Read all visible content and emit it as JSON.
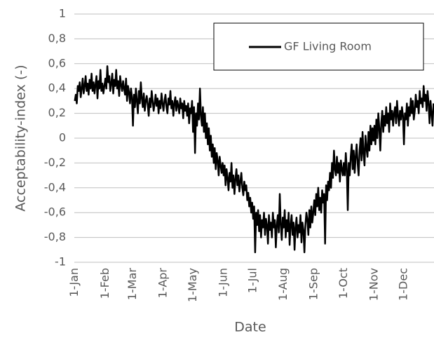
{
  "chart_data": {
    "type": "line",
    "xlabel": "Date",
    "ylabel": "Acceptability-index (-)",
    "ylim": [
      -1,
      1
    ],
    "yticks": [
      -1,
      {
        "value": -0.8,
        "label": "-0,8"
      },
      {
        "value": -0.6,
        "label": "-0,6"
      },
      {
        "value": -0.4,
        "label": "-0,4"
      },
      {
        "value": -0.2,
        "label": "-0,2"
      },
      0,
      {
        "value": 0.2,
        "label": "0,2"
      },
      {
        "value": 0.4,
        "label": "0,4"
      },
      {
        "value": 0.6,
        "label": "0,6"
      },
      {
        "value": 0.8,
        "label": "0,8"
      },
      1
    ],
    "grid": true,
    "legend": "top-right",
    "categories": [
      "1-Jan",
      null,
      null,
      null,
      null,
      null,
      null,
      null,
      null,
      null,
      null,
      null,
      null,
      null,
      null,
      null,
      null,
      null,
      null,
      null,
      null,
      null,
      null,
      null,
      null,
      null,
      null,
      null,
      null,
      null,
      null,
      "1-Feb",
      null,
      null,
      null,
      null,
      null,
      null,
      null,
      null,
      null,
      null,
      null,
      null,
      null,
      null,
      null,
      null,
      null,
      null,
      null,
      null,
      null,
      null,
      null,
      null,
      null,
      null,
      null,
      "1-Mar",
      null,
      null,
      null,
      null,
      null,
      null,
      null,
      null,
      null,
      null,
      null,
      null,
      null,
      null,
      null,
      null,
      null,
      null,
      null,
      null,
      null,
      null,
      null,
      null,
      null,
      null,
      null,
      null,
      null,
      null,
      "1-Apr",
      null,
      null,
      null,
      null,
      null,
      null,
      null,
      null,
      null,
      null,
      null,
      null,
      null,
      null,
      null,
      null,
      null,
      null,
      null,
      null,
      null,
      null,
      null,
      null,
      null,
      null,
      null,
      null,
      null,
      "1-May",
      null,
      null,
      null,
      null,
      null,
      null,
      null,
      null,
      null,
      null,
      null,
      null,
      null,
      null,
      null,
      null,
      null,
      null,
      null,
      null,
      null,
      null,
      null,
      null,
      null,
      null,
      null,
      null,
      null,
      null,
      "1-Jun",
      null,
      null,
      null,
      null,
      null,
      null,
      null,
      null,
      null,
      null,
      null,
      null,
      null,
      null,
      null,
      null,
      null,
      null,
      null,
      null,
      null,
      null,
      null,
      null,
      null,
      null,
      null,
      null,
      null,
      "1-Jul",
      null,
      null,
      null,
      null,
      null,
      null,
      null,
      null,
      null,
      null,
      null,
      null,
      null,
      null,
      null,
      null,
      null,
      null,
      null,
      null,
      null,
      null,
      null,
      null,
      null,
      null,
      null,
      null,
      null,
      null,
      "1-Aug",
      null,
      null,
      null,
      null,
      null,
      null,
      null,
      null,
      null,
      null,
      null,
      null,
      null,
      null,
      null,
      null,
      null,
      null,
      null,
      null,
      null,
      null,
      null,
      null,
      null,
      null,
      null,
      null,
      null,
      null,
      "1-Sep",
      null,
      null,
      null,
      null,
      null,
      null,
      null,
      null,
      null,
      null,
      null,
      null,
      null,
      null,
      null,
      null,
      null,
      null,
      null,
      null,
      null,
      null,
      null,
      null,
      null,
      null,
      null,
      null,
      null,
      "1-Oct",
      null,
      null,
      null,
      null,
      null,
      null,
      null,
      null,
      null,
      null,
      null,
      null,
      null,
      null,
      null,
      null,
      null,
      null,
      null,
      null,
      null,
      null,
      null,
      null,
      null,
      null,
      null,
      null,
      null,
      null,
      "1-Nov",
      null,
      null,
      null,
      null,
      null,
      null,
      null,
      null,
      null,
      null,
      null,
      null,
      null,
      null,
      null,
      null,
      null,
      null,
      null,
      null,
      null,
      null,
      null,
      null,
      null,
      null,
      null,
      null,
      null,
      "1-Dec",
      null,
      null,
      null,
      null,
      null,
      null,
      null,
      null,
      null,
      null,
      null,
      null,
      null,
      null,
      null,
      null,
      null,
      null,
      null,
      null,
      null,
      null,
      null,
      null,
      null,
      null,
      null,
      null,
      null,
      null
    ],
    "series": [
      {
        "name": "GF Living Room",
        "color": "#000000",
        "values": [
          0.3,
          0.35,
          0.28,
          0.42,
          0.38,
          0.45,
          0.33,
          0.4,
          0.48,
          0.36,
          0.42,
          0.5,
          0.38,
          0.44,
          0.35,
          0.47,
          0.4,
          0.52,
          0.38,
          0.45,
          0.36,
          0.43,
          0.5,
          0.32,
          0.46,
          0.4,
          0.55,
          0.38,
          0.44,
          0.36,
          0.42,
          0.48,
          0.4,
          0.58,
          0.45,
          0.5,
          0.38,
          0.44,
          0.52,
          0.36,
          0.47,
          0.42,
          0.55,
          0.4,
          0.46,
          0.34,
          0.5,
          0.43,
          0.38,
          0.46,
          0.4,
          0.35,
          0.48,
          0.3,
          0.42,
          0.37,
          0.28,
          0.4,
          0.33,
          0.1,
          0.35,
          0.25,
          0.4,
          0.3,
          0.2,
          0.38,
          0.28,
          0.45,
          0.32,
          0.25,
          0.36,
          0.22,
          0.3,
          0.34,
          0.27,
          0.18,
          0.32,
          0.25,
          0.38,
          0.3,
          0.22,
          0.28,
          0.35,
          0.26,
          0.32,
          0.2,
          0.3,
          0.24,
          0.36,
          0.28,
          0.22,
          0.3,
          0.35,
          0.25,
          0.2,
          0.32,
          0.27,
          0.38,
          0.24,
          0.3,
          0.18,
          0.28,
          0.33,
          0.22,
          0.3,
          0.26,
          0.2,
          0.32,
          0.24,
          0.28,
          0.16,
          0.3,
          0.22,
          0.26,
          0.18,
          0.28,
          0.12,
          0.24,
          0.2,
          0.3,
          0.05,
          0.25,
          -0.12,
          0.2,
          0.1,
          0.28,
          0.15,
          0.4,
          0.18,
          0.1,
          0.25,
          0.05,
          0.2,
          0,
          0.12,
          -0.05,
          0.08,
          -0.1,
          0.02,
          -0.15,
          -0.05,
          -0.2,
          -0.08,
          -0.25,
          -0.12,
          -0.18,
          -0.3,
          -0.15,
          -0.22,
          -0.28,
          -0.2,
          -0.3,
          -0.22,
          -0.38,
          -0.25,
          -0.32,
          -0.42,
          -0.28,
          -0.35,
          -0.2,
          -0.4,
          -0.3,
          -0.45,
          -0.33,
          -0.25,
          -0.38,
          -0.3,
          -0.43,
          -0.35,
          -0.28,
          -0.4,
          -0.46,
          -0.35,
          -0.42,
          -0.38,
          -0.5,
          -0.44,
          -0.55,
          -0.48,
          -0.6,
          -0.52,
          -0.65,
          -0.55,
          -0.92,
          -0.6,
          -0.7,
          -0.58,
          -0.75,
          -0.62,
          -0.8,
          -0.66,
          -0.72,
          -0.6,
          -0.78,
          -0.65,
          -0.7,
          -0.85,
          -0.62,
          -0.74,
          -0.68,
          -0.8,
          -0.6,
          -0.72,
          -0.66,
          -0.88,
          -0.7,
          -0.62,
          -0.76,
          -0.45,
          -0.7,
          -0.82,
          -0.64,
          -0.72,
          -0.58,
          -0.8,
          -0.66,
          -0.75,
          -0.6,
          -0.86,
          -0.7,
          -0.62,
          -0.78,
          -0.68,
          -0.9,
          -0.72,
          -0.64,
          -0.8,
          -0.7,
          -0.76,
          -0.62,
          -0.84,
          -0.68,
          -0.74,
          -0.92,
          -0.7,
          -0.6,
          -0.66,
          -0.78,
          -0.58,
          -0.72,
          -0.55,
          -0.68,
          -0.6,
          -0.5,
          -0.62,
          -0.45,
          -0.55,
          -0.4,
          -0.58,
          -0.48,
          -0.6,
          -0.42,
          -0.52,
          -0.45,
          -0.85,
          -0.38,
          -0.5,
          -0.35,
          -0.42,
          -0.28,
          -0.4,
          -0.2,
          -0.32,
          -0.1,
          -0.25,
          -0.3,
          -0.15,
          -0.28,
          -0.2,
          -0.35,
          -0.18,
          -0.25,
          -0.3,
          -0.2,
          -0.3,
          -0.12,
          -0.25,
          -0.58,
          -0.2,
          -0.3,
          -0.15,
          -0.05,
          -0.25,
          -0.1,
          -0.28,
          -0.15,
          -0.05,
          -0.2,
          -0.3,
          -0.1,
          0,
          -0.18,
          0.05,
          -0.12,
          -0.22,
          0.02,
          -0.08,
          -0.15,
          0.05,
          -0.1,
          0.1,
          -0.05,
          0.08,
          -0.02,
          0.1,
          -0.05,
          0.15,
          0,
          0.2,
          0.08,
          -0.1,
          0.12,
          0.22,
          0.05,
          0.18,
          0.1,
          0.25,
          0.12,
          0.2,
          0.05,
          0.28,
          0.15,
          0.22,
          0.1,
          0.2,
          0.25,
          0.12,
          0.3,
          0.18,
          0.1,
          0.22,
          0.15,
          0.25,
          0.18,
          -0.05,
          0.2,
          0.15,
          0.28,
          0.1,
          0.25,
          0.18,
          0.32,
          0.2,
          0.3,
          0.15,
          0.22,
          0.35,
          0.25,
          0.3,
          0.2,
          0.38,
          0.28,
          0.32,
          0.25,
          0.42,
          0.3,
          0.35,
          0.22,
          0.38,
          0.28,
          0.12,
          0.3,
          0.2,
          0.1,
          0.28
        ]
      }
    ]
  }
}
